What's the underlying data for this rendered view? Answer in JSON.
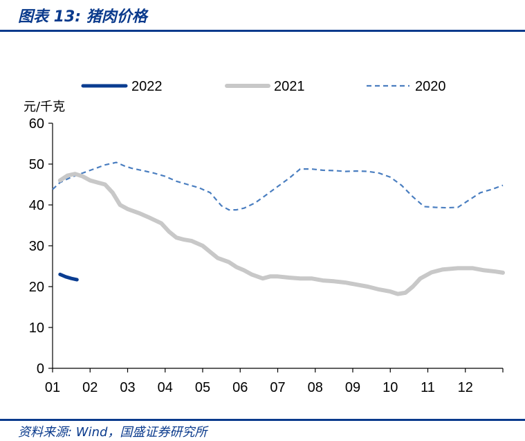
{
  "header": {
    "title": "图表 13:  猪肉价格"
  },
  "footer": {
    "source": "资料来源:  Wind，国盛证券研究所"
  },
  "chart_data": {
    "type": "line",
    "ylabel": "元/千克",
    "ylim": [
      0,
      60
    ],
    "yticks": [
      "0",
      "10",
      "20",
      "30",
      "40",
      "50",
      "60"
    ],
    "xticks": [
      "01",
      "02",
      "03",
      "04",
      "05",
      "06",
      "07",
      "08",
      "09",
      "10",
      "11",
      "12"
    ],
    "xlim": [
      1,
      13
    ],
    "colors": {
      "s2022": "#0a3d91",
      "s2021": "#c8c8c8",
      "s2020": "#4a7ec0"
    },
    "series": [
      {
        "name": "2022",
        "style": "solid-thick",
        "x": [
          1.2,
          1.35,
          1.5,
          1.65
        ],
        "y": [
          23.0,
          22.4,
          22.0,
          21.7
        ]
      },
      {
        "name": "2021",
        "style": "solid-thick-gray",
        "x": [
          1.2,
          1.4,
          1.6,
          1.8,
          2.0,
          2.2,
          2.4,
          2.6,
          2.8,
          3.0,
          3.3,
          3.6,
          3.9,
          4.1,
          4.3,
          4.5,
          4.7,
          5.0,
          5.2,
          5.4,
          5.7,
          5.9,
          6.1,
          6.3,
          6.6,
          6.8,
          7.0,
          7.3,
          7.6,
          7.9,
          8.2,
          8.5,
          8.8,
          9.1,
          9.4,
          9.7,
          10.0,
          10.2,
          10.4,
          10.6,
          10.8,
          11.1,
          11.4,
          11.8,
          12.2,
          12.5,
          12.8,
          13.0
        ],
        "y": [
          46.0,
          47.2,
          47.6,
          47.0,
          46.0,
          45.5,
          45.0,
          43.0,
          40.0,
          39.0,
          38.0,
          36.8,
          35.5,
          33.5,
          32.0,
          31.5,
          31.2,
          30.0,
          28.5,
          27.0,
          26.0,
          24.8,
          24.0,
          23.0,
          22.0,
          22.5,
          22.5,
          22.2,
          22.0,
          22.0,
          21.5,
          21.3,
          21.0,
          20.5,
          20.0,
          19.3,
          18.8,
          18.2,
          18.5,
          20.0,
          22.0,
          23.5,
          24.2,
          24.5,
          24.5,
          24.0,
          23.7,
          23.4
        ]
      },
      {
        "name": "2020",
        "style": "dashed",
        "x": [
          1.0,
          1.2,
          1.5,
          1.8,
          2.1,
          2.4,
          2.7,
          2.9,
          3.1,
          3.4,
          3.7,
          4.0,
          4.3,
          4.6,
          4.9,
          5.2,
          5.5,
          5.7,
          5.9,
          6.1,
          6.4,
          6.7,
          7.0,
          7.3,
          7.6,
          7.9,
          8.2,
          8.5,
          8.8,
          9.1,
          9.4,
          9.7,
          10.0,
          10.3,
          10.6,
          10.9,
          11.2,
          11.5,
          11.8,
          12.1,
          12.4,
          12.7,
          13.0
        ],
        "y": [
          43.8,
          45.5,
          46.8,
          47.8,
          48.8,
          49.8,
          50.4,
          49.6,
          49.0,
          48.4,
          47.8,
          47.0,
          45.8,
          45.0,
          44.2,
          43.0,
          39.8,
          38.8,
          38.8,
          39.2,
          40.5,
          42.5,
          44.5,
          46.5,
          48.8,
          48.8,
          48.5,
          48.4,
          48.2,
          48.3,
          48.2,
          47.8,
          46.8,
          44.8,
          42.0,
          39.6,
          39.4,
          39.3,
          39.4,
          41.2,
          43.0,
          43.8,
          44.8
        ]
      }
    ]
  }
}
